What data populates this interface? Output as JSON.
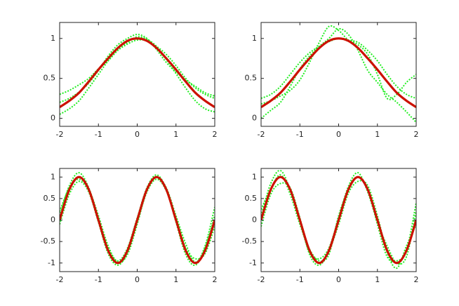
{
  "chart_data": [
    {
      "type": "line",
      "x": [
        -2,
        -1.75,
        -1.5,
        -1.25,
        -1,
        -0.75,
        -0.5,
        -0.25,
        0,
        0.25,
        0.5,
        0.75,
        1,
        1.25,
        1.5,
        1.75,
        2
      ],
      "xlim": [
        -2,
        2
      ],
      "xticks": [
        -2,
        -1,
        0,
        1,
        2
      ],
      "ylim": [
        -0.1,
        1.2
      ],
      "yticks": [
        0,
        0.5,
        1
      ],
      "series": [
        {
          "color": "#22ee22",
          "linestyle": "dotted",
          "values": [
            0.3,
            0.35,
            0.42,
            0.5,
            0.62,
            0.72,
            0.85,
            0.93,
            0.98,
            0.97,
            0.9,
            0.8,
            0.66,
            0.5,
            0.38,
            0.3,
            0.25
          ]
        },
        {
          "color": "#22ee22",
          "linestyle": "dotted",
          "values": [
            0.05,
            0.12,
            0.22,
            0.38,
            0.55,
            0.72,
            0.86,
            0.95,
            1.02,
            0.99,
            0.9,
            0.74,
            0.56,
            0.38,
            0.22,
            0.12,
            0.08
          ]
        },
        {
          "color": "#22ee22",
          "linestyle": "dotted",
          "values": [
            0.2,
            0.25,
            0.33,
            0.44,
            0.6,
            0.78,
            0.92,
            1.0,
            1.05,
            1.0,
            0.86,
            0.7,
            0.58,
            0.48,
            0.4,
            0.32,
            0.28
          ]
        },
        {
          "color": "#cc1100",
          "linestyle": "solid",
          "values": [
            0.14,
            0.22,
            0.32,
            0.46,
            0.61,
            0.75,
            0.88,
            0.97,
            1,
            0.97,
            0.88,
            0.75,
            0.61,
            0.46,
            0.32,
            0.22,
            0.14
          ]
        }
      ]
    },
    {
      "type": "line",
      "x": [
        -2,
        -1.75,
        -1.5,
        -1.25,
        -1,
        -0.75,
        -0.5,
        -0.25,
        0,
        0.25,
        0.5,
        0.75,
        1,
        1.25,
        1.5,
        1.75,
        2
      ],
      "xlim": [
        -2,
        2
      ],
      "xticks": [
        -2,
        -1,
        0,
        1,
        2
      ],
      "ylim": [
        -0.1,
        1.2
      ],
      "yticks": [
        0,
        0.5,
        1
      ],
      "series": [
        {
          "color": "#22ee22",
          "linestyle": "dotted",
          "values": [
            0.25,
            0.3,
            0.4,
            0.55,
            0.7,
            0.82,
            0.9,
            0.96,
            1.0,
            0.98,
            0.95,
            0.85,
            0.72,
            0.55,
            0.4,
            0.3,
            0.25
          ]
        },
        {
          "color": "#22ee22",
          "linestyle": "dotted",
          "values": [
            0.0,
            0.1,
            0.2,
            0.4,
            0.62,
            0.78,
            0.9,
            1.0,
            1.12,
            1.05,
            0.85,
            0.6,
            0.45,
            0.3,
            0.2,
            0.08,
            -0.05
          ]
        },
        {
          "color": "#22ee22",
          "linestyle": "dotted",
          "values": [
            0.18,
            0.22,
            0.28,
            0.35,
            0.48,
            0.7,
            0.95,
            1.15,
            1.1,
            0.98,
            0.92,
            0.8,
            0.55,
            0.25,
            0.3,
            0.45,
            0.55
          ]
        },
        {
          "color": "#cc1100",
          "linestyle": "solid",
          "values": [
            0.14,
            0.22,
            0.32,
            0.46,
            0.61,
            0.75,
            0.88,
            0.97,
            1,
            0.97,
            0.88,
            0.75,
            0.61,
            0.46,
            0.32,
            0.22,
            0.14
          ]
        }
      ]
    },
    {
      "type": "line",
      "x": [
        -2,
        -1.75,
        -1.5,
        -1.25,
        -1,
        -0.75,
        -0.5,
        -0.25,
        0,
        0.25,
        0.5,
        0.75,
        1,
        1.25,
        1.5,
        1.75,
        2
      ],
      "xlim": [
        -2,
        2
      ],
      "xticks": [
        -2,
        -1,
        0,
        1,
        2
      ],
      "ylim": [
        -1.2,
        1.2
      ],
      "yticks": [
        -1,
        -0.5,
        0,
        0.5,
        1
      ],
      "series": [
        {
          "color": "#22ee22",
          "linestyle": "dotted",
          "values": [
            0.1,
            0.8,
            1.1,
            0.75,
            0.05,
            -0.65,
            -0.95,
            -0.65,
            0.05,
            0.75,
            1.05,
            0.72,
            -0.05,
            -0.8,
            -1.05,
            -0.65,
            0.1
          ]
        },
        {
          "color": "#22ee22",
          "linestyle": "dotted",
          "values": [
            -0.1,
            0.6,
            0.9,
            0.65,
            -0.05,
            -0.78,
            -1.05,
            -0.75,
            -0.05,
            0.65,
            0.95,
            0.68,
            0.05,
            -0.65,
            -0.9,
            -0.78,
            -0.15
          ]
        },
        {
          "color": "#22ee22",
          "linestyle": "dotted",
          "values": [
            0.2,
            0.75,
            0.95,
            0.72,
            0.1,
            -0.6,
            -0.98,
            -0.8,
            -0.1,
            0.7,
            1.0,
            0.75,
            0.1,
            -0.55,
            -0.98,
            -0.6,
            0.3
          ]
        },
        {
          "color": "#cc1100",
          "linestyle": "solid",
          "values": [
            0,
            0.71,
            1,
            0.71,
            0,
            -0.71,
            -1,
            -0.71,
            0,
            0.71,
            1,
            0.71,
            0,
            -0.71,
            -1,
            -0.71,
            0
          ]
        }
      ]
    },
    {
      "type": "line",
      "x": [
        -2,
        -1.75,
        -1.5,
        -1.25,
        -1,
        -0.75,
        -0.5,
        -0.25,
        0,
        0.25,
        0.5,
        0.75,
        1,
        1.25,
        1.5,
        1.75,
        2
      ],
      "xlim": [
        -2,
        2
      ],
      "xticks": [
        -2,
        -1,
        0,
        1,
        2
      ],
      "ylim": [
        -1.2,
        1.2
      ],
      "yticks": [
        -1,
        -0.5,
        0,
        0.5,
        1
      ],
      "series": [
        {
          "color": "#22ee22",
          "linestyle": "dotted",
          "values": [
            0.1,
            0.85,
            1.15,
            0.7,
            -0.05,
            -0.75,
            -0.9,
            -0.65,
            0.05,
            0.78,
            1.1,
            0.65,
            -0.05,
            -0.6,
            -1.0,
            -0.85,
            0.2
          ]
        },
        {
          "color": "#22ee22",
          "linestyle": "dotted",
          "values": [
            -0.15,
            0.6,
            0.85,
            0.75,
            0.05,
            -0.8,
            -1.05,
            -0.72,
            -0.1,
            0.62,
            0.9,
            0.8,
            0.1,
            -0.75,
            -1.12,
            -0.6,
            -0.1
          ]
        },
        {
          "color": "#22ee22",
          "linestyle": "dotted",
          "values": [
            0.25,
            0.72,
            1.05,
            0.6,
            -0.1,
            -0.68,
            -0.95,
            -0.8,
            0.1,
            0.7,
            1.0,
            0.72,
            -0.1,
            -0.85,
            -0.95,
            -0.7,
            0.4
          ]
        },
        {
          "color": "#cc1100",
          "linestyle": "solid",
          "values": [
            0,
            0.71,
            1,
            0.71,
            0,
            -0.71,
            -1,
            -0.71,
            0,
            0.71,
            1,
            0.71,
            0,
            -0.71,
            -1,
            -0.71,
            0
          ]
        }
      ]
    }
  ]
}
